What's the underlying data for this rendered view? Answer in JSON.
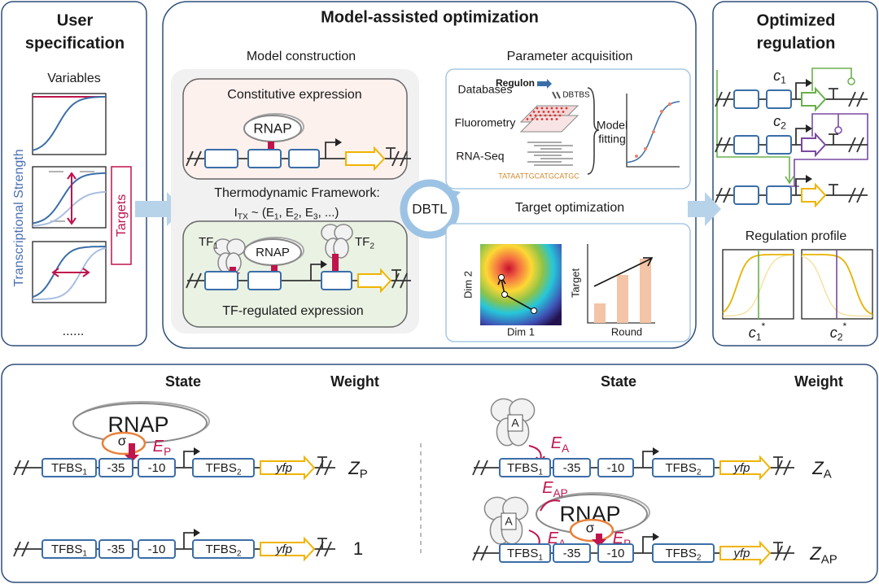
{
  "user_specification": {
    "title": [
      "User",
      "specification"
    ],
    "variables": "Variables",
    "axis_label": "Transcriptional Strength",
    "targets": "Targets",
    "ellipsis": "......"
  },
  "model_assisted_optimization": {
    "title": "Model-assisted optimization",
    "model_construction": {
      "title": "Model construction",
      "constitutive": "Constitutive expression",
      "rnap": "RNAP",
      "framework": "Thermodynamic Framework:",
      "formula": [
        {
          "text": "I",
          "sub": "TX"
        },
        {
          "text": " ~ (E",
          "sub": "1"
        },
        {
          "text": ", E",
          "sub": "2"
        },
        {
          "text": ", E",
          "sub": "3"
        },
        {
          "text": ", ...)"
        }
      ],
      "tf1": [
        {
          "text": "TF",
          "sub": "1"
        }
      ],
      "tf2": [
        {
          "text": "TF",
          "sub": "2"
        }
      ],
      "tf_regulated": "TF-regulated expression"
    },
    "dbtl": "DBTL",
    "parameter_acquisition": {
      "title": "Parameter acquisition",
      "databases": "Databases",
      "regulon": "Regulon",
      "dbtbs": "DBTBS",
      "fluorometry": "Fluorometry",
      "rnaseq": "RNA-Seq",
      "sequence": "TATAATTGCATGCATGC",
      "model_fitting": [
        "Model",
        "fitting"
      ]
    },
    "target_optimization": {
      "title": "Target optimization",
      "dim1": "Dim 1",
      "dim2": "Dim 2",
      "target": "Target",
      "round": "Round"
    }
  },
  "optimized_regulation": {
    "title": [
      "Optimized",
      "regulation"
    ],
    "c1": [
      {
        "text": "c",
        "sub": "1"
      }
    ],
    "c2": [
      {
        "text": "c",
        "sub": "2"
      }
    ],
    "regulation_profile": "Regulation profile",
    "c1_star": [
      {
        "text": "c",
        "sub": "1",
        "sup": "*"
      }
    ],
    "c2_star": [
      {
        "text": "c",
        "sub": "2",
        "sup": "*"
      }
    ]
  },
  "states": {
    "headers": {
      "state": "State",
      "weight": "Weight"
    },
    "elements": {
      "tfbs1": [
        {
          "text": "TFBS",
          "sub": "1"
        }
      ],
      "m35": "-35",
      "m10": "-10",
      "tfbs2": [
        {
          "text": "TFBS",
          "sub": "2"
        }
      ],
      "yfp": "yfp"
    },
    "rnap": "RNAP",
    "sigma": "σ",
    "activator": "A",
    "energies": {
      "ep": [
        {
          "text": "E",
          "sub": "P"
        }
      ],
      "ea": [
        {
          "text": "E",
          "sub": "A"
        }
      ],
      "eap": [
        {
          "text": "E",
          "sub": "AP"
        }
      ]
    },
    "weights": {
      "zp": [
        {
          "text": "Z",
          "sub": "P"
        }
      ],
      "one": "1",
      "za": [
        {
          "text": "Z",
          "sub": "A"
        }
      ],
      "zap": [
        {
          "text": "Z",
          "sub": "AP"
        }
      ]
    }
  }
}
